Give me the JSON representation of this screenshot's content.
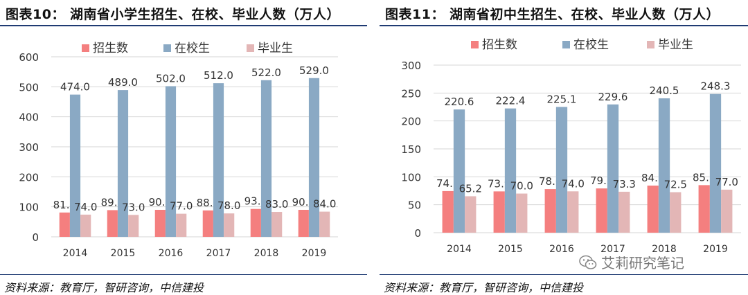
{
  "chart_data": [
    {
      "type": "bar",
      "title": "图表10： 湖南省小学生招生、在校、毕业人数（万人）",
      "categories": [
        "2014",
        "2015",
        "2016",
        "2017",
        "2018",
        "2019"
      ],
      "series": [
        {
          "name": "招生数",
          "values": [
            81.0,
            89.0,
            90.0,
            88.0,
            93.0,
            90.0
          ],
          "color": "#f47f7f"
        },
        {
          "name": "在校生",
          "values": [
            474.0,
            489.0,
            502.0,
            512.0,
            522.0,
            529.0
          ],
          "color": "#8aa9c4"
        },
        {
          "name": "毕业生",
          "values": [
            74.0,
            73.0,
            77.0,
            78.0,
            83.0,
            84.0
          ],
          "color": "#e3b6b6"
        }
      ],
      "yticks": [
        "0",
        "100",
        "200",
        "300",
        "400",
        "500",
        "600"
      ],
      "ylim": [
        0,
        600
      ],
      "source": "资料来源：教育厅，智研咨询，中信建投"
    },
    {
      "type": "bar",
      "title": "图表11： 湖南省初中生招生、在校、毕业人数（万人）",
      "categories": [
        "2014",
        "2015",
        "2016",
        "2017",
        "2018",
        "2019"
      ],
      "series": [
        {
          "name": "招生数",
          "values": [
            74.5,
            73.9,
            78.0,
            79.2,
            84.3,
            85.1
          ],
          "color": "#f47f7f"
        },
        {
          "name": "在校生",
          "values": [
            220.6,
            222.4,
            225.1,
            229.6,
            240.5,
            248.3
          ],
          "color": "#8aa9c4"
        },
        {
          "name": "毕业生",
          "values": [
            65.2,
            70.0,
            74.0,
            73.3,
            72.5,
            77.0
          ],
          "color": "#e3b6b6"
        }
      ],
      "yticks": [
        "0",
        "50",
        "100",
        "150",
        "200",
        "250",
        "300"
      ],
      "ylim": [
        0,
        300
      ],
      "source": "资料来源：教育厅，智研咨询，中信建投"
    }
  ],
  "watermark": {
    "text": "艾莉研究笔记",
    "icon": "wechat-icon"
  }
}
